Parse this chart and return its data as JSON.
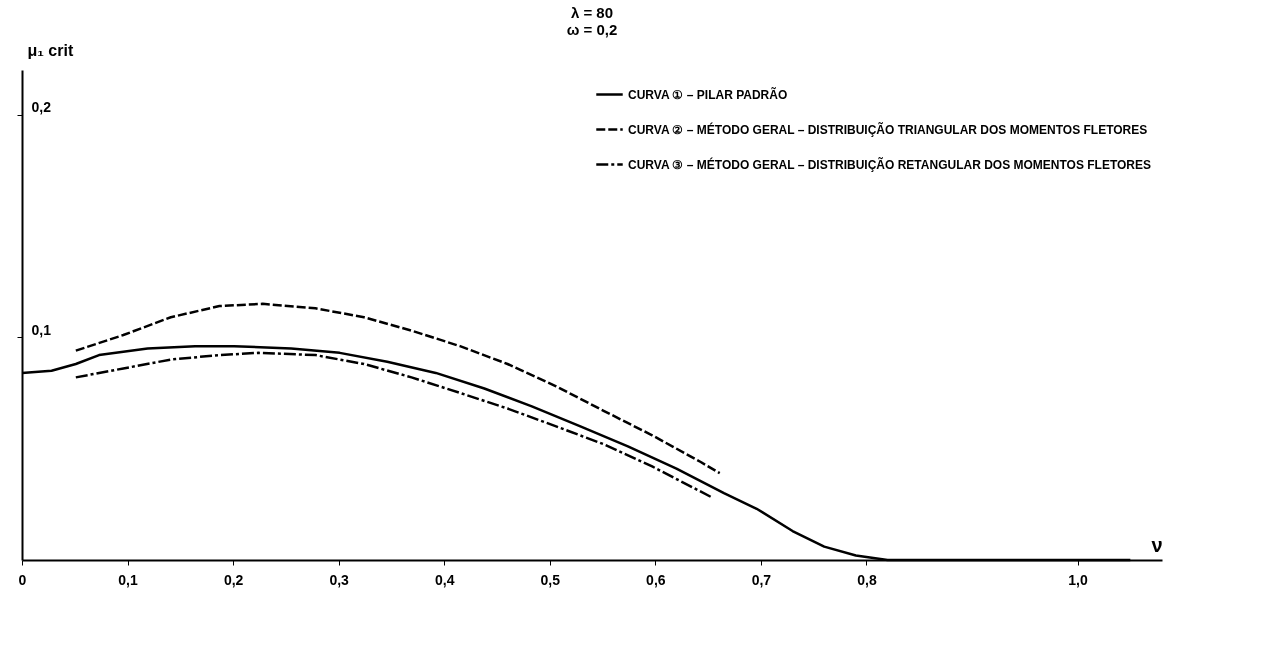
{
  "chart_data": {
    "type": "line",
    "ylabel": "μ₁ crit",
    "xlabel": "ν",
    "annotations": [
      "λ = 80",
      "ω = 0,2"
    ],
    "xlim": [
      0,
      1.08
    ],
    "xticks": [
      {
        "value": 0,
        "label": "0"
      },
      {
        "value": 0.1,
        "label": "0,1"
      },
      {
        "value": 0.2,
        "label": "0,2"
      },
      {
        "value": 0.3,
        "label": "0,3"
      },
      {
        "value": 0.4,
        "label": "0,4"
      },
      {
        "value": 0.5,
        "label": "0,5"
      },
      {
        "value": 0.6,
        "label": "0,6"
      },
      {
        "value": 0.7,
        "label": "0,7"
      },
      {
        "value": 0.8,
        "label": "0,8"
      },
      {
        "value": 1.0,
        "label": "1,0"
      }
    ],
    "ylim": [
      0,
      0.22
    ],
    "yticks": [
      {
        "value": 0.1,
        "label": "0,1"
      },
      {
        "value": 0.2,
        "label": "0,2"
      }
    ],
    "grid": false,
    "legend": "top right",
    "marker": "none",
    "series": [
      {
        "name": "CURVA ① – PILAR PADRÃO",
        "color": "#000000",
        "line_style": "solid",
        "x": [
          0,
          0.028,
          0.051,
          0.073,
          0.119,
          0.164,
          0.201,
          0.255,
          0.301,
          0.346,
          0.392,
          0.438,
          0.483,
          0.529,
          0.574,
          0.62,
          0.665,
          0.696,
          0.73,
          0.76,
          0.79,
          0.82,
          1.05
        ],
        "values": [
          0.084,
          0.085,
          0.088,
          0.092,
          0.095,
          0.096,
          0.096,
          0.095,
          0.093,
          0.089,
          0.084,
          0.077,
          0.069,
          0.06,
          0.051,
          0.041,
          0.03,
          0.023,
          0.013,
          0.006,
          0.002,
          0,
          0
        ]
      },
      {
        "name": "CURVA ② – MÉTODO GERAL – DISTRIBUIÇÃO TRIANGULAR DOS MOMENTOS FLETORES",
        "color": "#000000",
        "line_style": "dashed",
        "x": [
          0.051,
          0.096,
          0.141,
          0.187,
          0.228,
          0.278,
          0.324,
          0.369,
          0.415,
          0.46,
          0.506,
          0.551,
          0.597,
          0.643,
          0.661
        ],
        "values": [
          0.094,
          0.101,
          0.109,
          0.114,
          0.115,
          0.113,
          0.109,
          0.103,
          0.096,
          0.088,
          0.078,
          0.067,
          0.056,
          0.044,
          0.039
        ]
      },
      {
        "name": "CURVA ③ – MÉTODO GERAL – DISTRIBUIÇÃO RETANGULAR DOS MOMENTOS FLETORES",
        "color": "#000000",
        "line_style": "dashdot",
        "x": [
          0.051,
          0.096,
          0.141,
          0.187,
          0.224,
          0.278,
          0.324,
          0.369,
          0.415,
          0.46,
          0.506,
          0.551,
          0.597,
          0.654
        ],
        "values": [
          0.082,
          0.086,
          0.09,
          0.092,
          0.093,
          0.092,
          0.088,
          0.082,
          0.075,
          0.068,
          0.06,
          0.052,
          0.042,
          0.028
        ]
      }
    ]
  }
}
